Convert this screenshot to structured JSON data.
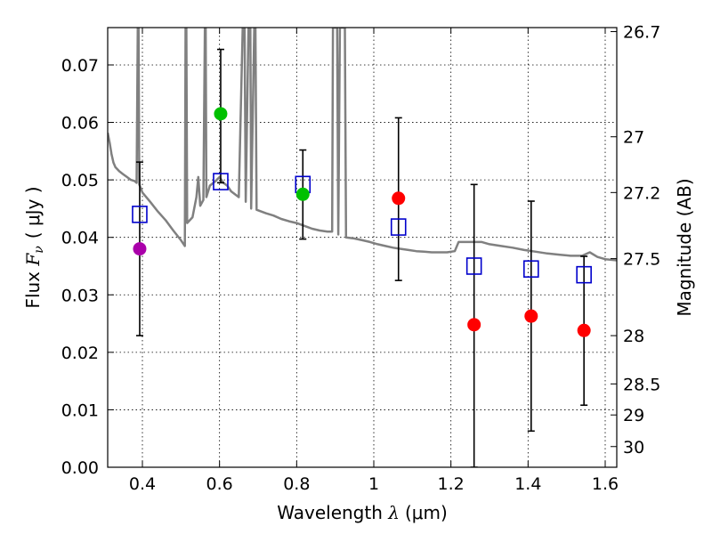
{
  "chart_data": {
    "type": "scatter",
    "xlabel_prefix": "Wavelength ",
    "xlabel_symbol": "λ",
    "xlabel_unit": "(μm)",
    "ylabel_prefix": "Flux ",
    "ylabel_symbol": "F",
    "ylabel_symbol_sub": "ν",
    "ylabel_unit": "( μJy )",
    "y2label": "Magnitude (AB)",
    "xlim": [
      0.31,
      1.63
    ],
    "ylim": [
      0.0,
      0.0765
    ],
    "xticks": [
      0.4,
      0.6,
      0.8,
      1.0,
      1.2,
      1.4,
      1.6
    ],
    "xtick_labels": [
      "0.4",
      "0.6",
      "0.8",
      "1",
      "1.2",
      "1.4",
      "1.6"
    ],
    "yticks": [
      0.0,
      0.01,
      0.02,
      0.03,
      0.04,
      0.05,
      0.06,
      0.07
    ],
    "ytick_labels": [
      "0.00",
      "0.01",
      "0.02",
      "0.03",
      "0.04",
      "0.05",
      "0.06",
      "0.07"
    ],
    "y2ticks": [
      {
        "label": "26.7",
        "flux": 0.0758
      },
      {
        "label": "27",
        "flux": 0.0575
      },
      {
        "label": "27.2",
        "flux": 0.0478
      },
      {
        "label": "27.5",
        "flux": 0.0363
      },
      {
        "label": "28",
        "flux": 0.0229
      },
      {
        "label": "28.5",
        "flux": 0.0145
      },
      {
        "label": "29",
        "flux": 0.0091
      },
      {
        "label": "30",
        "flux": 0.0036
      }
    ],
    "grid": true,
    "series": [
      {
        "kind": "model",
        "color": "#808080",
        "points": [
          [
            0.31,
            0.0582
          ],
          [
            0.315,
            0.0565
          ],
          [
            0.32,
            0.0545
          ],
          [
            0.325,
            0.053
          ],
          [
            0.33,
            0.0522
          ],
          [
            0.34,
            0.0515
          ],
          [
            0.35,
            0.051
          ],
          [
            0.36,
            0.0505
          ],
          [
            0.37,
            0.05
          ],
          [
            0.38,
            0.0498
          ],
          [
            0.385,
            0.0495
          ],
          [
            0.388,
            0.0765
          ],
          [
            0.39,
            0.0765
          ],
          [
            0.392,
            0.0492
          ],
          [
            0.4,
            0.0478
          ],
          [
            0.42,
            0.0462
          ],
          [
            0.44,
            0.0445
          ],
          [
            0.46,
            0.043
          ],
          [
            0.48,
            0.0412
          ],
          [
            0.5,
            0.0395
          ],
          [
            0.505,
            0.039
          ],
          [
            0.51,
            0.0385
          ],
          [
            0.512,
            0.0765
          ],
          [
            0.514,
            0.0765
          ],
          [
            0.516,
            0.0425
          ],
          [
            0.53,
            0.0435
          ],
          [
            0.54,
            0.047
          ],
          [
            0.545,
            0.0505
          ],
          [
            0.55,
            0.0455
          ],
          [
            0.558,
            0.0465
          ],
          [
            0.562,
            0.0765
          ],
          [
            0.564,
            0.0765
          ],
          [
            0.566,
            0.047
          ],
          [
            0.575,
            0.049
          ],
          [
            0.59,
            0.0498
          ],
          [
            0.6,
            0.0505
          ],
          [
            0.61,
            0.0495
          ],
          [
            0.62,
            0.049
          ],
          [
            0.63,
            0.048
          ],
          [
            0.64,
            0.0475
          ],
          [
            0.65,
            0.047
          ],
          [
            0.66,
            0.0765
          ],
          [
            0.665,
            0.0765
          ],
          [
            0.668,
            0.0462
          ],
          [
            0.675,
            0.0765
          ],
          [
            0.68,
            0.0765
          ],
          [
            0.682,
            0.045
          ],
          [
            0.69,
            0.0765
          ],
          [
            0.693,
            0.0765
          ],
          [
            0.696,
            0.0448
          ],
          [
            0.72,
            0.0442
          ],
          [
            0.74,
            0.0438
          ],
          [
            0.76,
            0.0432
          ],
          [
            0.78,
            0.0428
          ],
          [
            0.8,
            0.0425
          ],
          [
            0.82,
            0.042
          ],
          [
            0.84,
            0.0415
          ],
          [
            0.86,
            0.0412
          ],
          [
            0.88,
            0.041
          ],
          [
            0.892,
            0.041
          ],
          [
            0.894,
            0.0765
          ],
          [
            0.905,
            0.0765
          ],
          [
            0.908,
            0.0405
          ],
          [
            0.912,
            0.0765
          ],
          [
            0.925,
            0.0765
          ],
          [
            0.928,
            0.04
          ],
          [
            0.95,
            0.0398
          ],
          [
            0.97,
            0.0395
          ],
          [
            0.99,
            0.0392
          ],
          [
            1.01,
            0.0388
          ],
          [
            1.03,
            0.0385
          ],
          [
            1.05,
            0.0382
          ],
          [
            1.07,
            0.038
          ],
          [
            1.09,
            0.0378
          ],
          [
            1.11,
            0.0376
          ],
          [
            1.13,
            0.0375
          ],
          [
            1.15,
            0.0374
          ],
          [
            1.17,
            0.0374
          ],
          [
            1.19,
            0.0374
          ],
          [
            1.21,
            0.0376
          ],
          [
            1.22,
            0.0392
          ],
          [
            1.25,
            0.0392
          ],
          [
            1.28,
            0.0392
          ],
          [
            1.3,
            0.0388
          ],
          [
            1.33,
            0.0385
          ],
          [
            1.36,
            0.0382
          ],
          [
            1.39,
            0.0378
          ],
          [
            1.42,
            0.0375
          ],
          [
            1.45,
            0.0372
          ],
          [
            1.48,
            0.037
          ],
          [
            1.51,
            0.0368
          ],
          [
            1.54,
            0.0368
          ],
          [
            1.56,
            0.0374
          ],
          [
            1.58,
            0.0366
          ],
          [
            1.6,
            0.0362
          ],
          [
            1.63,
            0.036
          ]
        ]
      },
      {
        "kind": "model-photometry",
        "marker": "open-square",
        "color": "#0000cc",
        "points": [
          [
            0.393,
            0.044
          ],
          [
            0.603,
            0.0497
          ],
          [
            0.816,
            0.0492
          ],
          [
            1.064,
            0.0418
          ],
          [
            1.26,
            0.035
          ],
          [
            1.408,
            0.0345
          ],
          [
            1.545,
            0.0335
          ]
        ]
      },
      {
        "kind": "observed",
        "marker": "filled-circle",
        "points": [
          {
            "x": 0.393,
            "y": 0.038,
            "color": "#aa00aa",
            "err_lo": 0.0229,
            "err_hi": 0.0531
          },
          {
            "x": 0.603,
            "y": 0.0615,
            "color": "#00c000",
            "err_lo": 0.0495,
            "err_hi": 0.0727
          },
          {
            "x": 0.816,
            "y": 0.0475,
            "color": "#00c000",
            "err_lo": 0.0397,
            "err_hi": 0.0552
          },
          {
            "x": 1.064,
            "y": 0.0468,
            "color": "#ff0000",
            "err_lo": 0.0325,
            "err_hi": 0.0608
          },
          {
            "x": 1.26,
            "y": 0.0248,
            "color": "#ff0000",
            "err_lo": 0.0,
            "err_hi": 0.0492
          },
          {
            "x": 1.408,
            "y": 0.0263,
            "color": "#ff0000",
            "err_lo": 0.0063,
            "err_hi": 0.0463
          },
          {
            "x": 1.545,
            "y": 0.0238,
            "color": "#ff0000",
            "err_lo": 0.0108,
            "err_hi": 0.0367
          }
        ]
      }
    ]
  }
}
